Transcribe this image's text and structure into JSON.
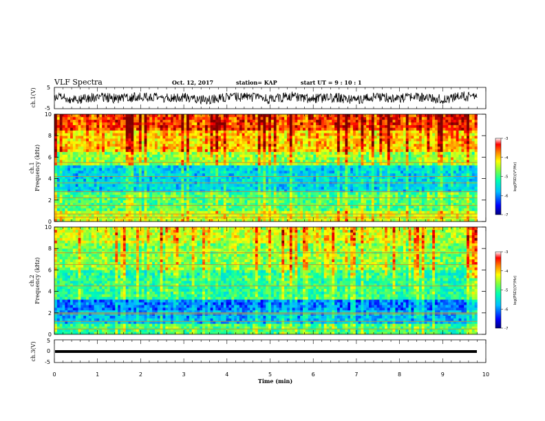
{
  "header": {
    "title": "VLF Spectra",
    "date": "Oct. 12, 2017",
    "station": "station= KAP",
    "start": "start  UT  =   9 : 10 : 1"
  },
  "colors": {
    "colormap": [
      "#00007f",
      "#0000ff",
      "#007fff",
      "#00ffff",
      "#7fff7f",
      "#ffff00",
      "#ff7f00",
      "#ff0000",
      "#7f0000"
    ],
    "trace": "#000000"
  },
  "chart_data": [
    {
      "type": "line",
      "panel": "ch1-waveform",
      "ylabel": "ch.1(V)",
      "ylim": [
        -5,
        5
      ],
      "yticks": [
        "5",
        "-5"
      ],
      "xlim": [
        0,
        10
      ],
      "description_values": "noisy waveform oscillating roughly between -3 and 3 V",
      "x": [
        0,
        0.5,
        1,
        1.5,
        2,
        2.5,
        3,
        3.5,
        4,
        4.5,
        5,
        5.5,
        6,
        6.5,
        7,
        7.5,
        8,
        8.5,
        9,
        9.5,
        9.8
      ],
      "y": [
        1,
        -2,
        1.5,
        -1,
        2,
        -0.5,
        1,
        -2,
        0.5,
        1.5,
        -1.5,
        2,
        -1,
        0.5,
        -2,
        1.5,
        -0.5,
        1,
        -1.5,
        2,
        0
      ]
    },
    {
      "type": "heatmap",
      "panel": "ch1-spectrogram",
      "ylabel": "ch.1 Frequency (kHz)",
      "ylim": [
        0,
        10
      ],
      "yticks": [
        "0",
        "2",
        "4",
        "6",
        "8",
        "10"
      ],
      "xlim": [
        0,
        9.8
      ],
      "colorbar": {
        "label": "log(PSD)(V²/Hz)",
        "range": [
          -7,
          -3
        ],
        "ticks": [
          "-3",
          "-4",
          "-5",
          "-6",
          "-7"
        ]
      },
      "bands": [
        {
          "from": 0.0,
          "to": 1.0,
          "level": -4.4
        },
        {
          "from": 1.0,
          "to": 2.6,
          "level": -4.9
        },
        {
          "from": 2.6,
          "to": 5.2,
          "level": -5.6
        },
        {
          "from": 5.2,
          "to": 6.5,
          "level": -4.6
        },
        {
          "from": 6.5,
          "to": 8.5,
          "level": -4.0
        },
        {
          "from": 8.5,
          "to": 10.0,
          "level": -3.5
        }
      ],
      "lines_khz": [
        0.4,
        0.7,
        1.5,
        2.2,
        2.8,
        3.6,
        4.2,
        5.5
      ]
    },
    {
      "type": "heatmap",
      "panel": "ch2-spectrogram",
      "ylabel": "ch.2 Frequency (kHz)",
      "ylim": [
        0,
        10
      ],
      "yticks": [
        "0",
        "2",
        "4",
        "6",
        "8",
        "10"
      ],
      "xlim": [
        0,
        9.8
      ],
      "colorbar": {
        "label": "log(PSD)(V²/Hz)",
        "range": [
          -7,
          -3
        ],
        "ticks": [
          "-3",
          "-4",
          "-5",
          "-6",
          "-7"
        ]
      },
      "bands": [
        {
          "from": 0.0,
          "to": 0.8,
          "level": -5.0
        },
        {
          "from": 0.8,
          "to": 2.2,
          "level": -5.8
        },
        {
          "from": 2.2,
          "to": 3.2,
          "level": -6.1
        },
        {
          "from": 3.2,
          "to": 6.0,
          "level": -5.1
        },
        {
          "from": 6.0,
          "to": 8.5,
          "level": -4.7
        },
        {
          "from": 8.5,
          "to": 10.0,
          "level": -4.4
        }
      ],
      "lines_khz": [
        0.5,
        1.2,
        1.9,
        2.0,
        4.5,
        6.5,
        7.6
      ]
    },
    {
      "type": "line",
      "panel": "ch3-waveform",
      "ylabel": "ch.3(V)",
      "ylim": [
        -5,
        5
      ],
      "yticks": [
        "5",
        "0",
        "-5"
      ],
      "xlim": [
        0,
        10
      ],
      "xlabel": "Time (min)",
      "xticks": [
        "0",
        "1",
        "2",
        "3",
        "4",
        "5",
        "6",
        "7",
        "8",
        "9",
        "10"
      ],
      "x": [
        0,
        9.8
      ],
      "y": [
        -1,
        -1
      ]
    }
  ]
}
